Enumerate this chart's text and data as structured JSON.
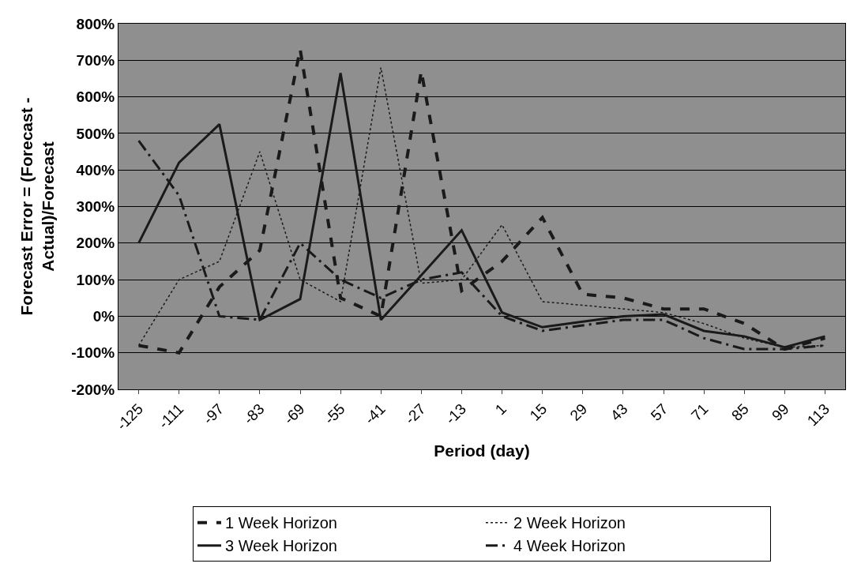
{
  "chart_data": {
    "type": "line",
    "xlabel": "Period (day)",
    "ylabel": "Forecast Error = (Forecast -\nActual)/Forecast",
    "categories": [
      "-125",
      "-111",
      "-97",
      "-83",
      "-69",
      "-55",
      "-41",
      "-27",
      "-13",
      "1",
      "15",
      "29",
      "43",
      "57",
      "71",
      "85",
      "99",
      "113"
    ],
    "ylim": [
      -200,
      800
    ],
    "yticks": [
      {
        "value": -200,
        "label": "-200%"
      },
      {
        "value": -100,
        "label": "-100%"
      },
      {
        "value": 0,
        "label": "0%"
      },
      {
        "value": 100,
        "label": "100%"
      },
      {
        "value": 200,
        "label": "200%"
      },
      {
        "value": 300,
        "label": "300%"
      },
      {
        "value": 400,
        "label": "400%"
      },
      {
        "value": 500,
        "label": "500%"
      },
      {
        "value": 600,
        "label": "600%"
      },
      {
        "value": 700,
        "label": "700%"
      },
      {
        "value": 800,
        "label": "800%"
      }
    ],
    "grid": "y",
    "legend": "bottom",
    "marker": "none",
    "series": [
      {
        "name": "1 Week Horizon",
        "color": "#1a1a1a",
        "line_style": "dashed",
        "values": [
          -80,
          -100,
          80,
          180,
          730,
          50,
          0,
          670,
          70,
          150,
          270,
          60,
          50,
          20,
          20,
          -20,
          -90,
          -60
        ]
      },
      {
        "name": "2 Week Horizon",
        "color": "#1a1a1a",
        "line_style": "dotted",
        "values": [
          -80,
          100,
          150,
          450,
          100,
          40,
          680,
          90,
          100,
          250,
          40,
          30,
          20,
          10,
          -20,
          -60,
          -85,
          -80
        ]
      },
      {
        "name": "3 Week Horizon",
        "color": "#1a1a1a",
        "line_style": "solid",
        "values": [
          200,
          420,
          525,
          -10,
          47,
          665,
          -10,
          112,
          235,
          10,
          -30,
          -15,
          0,
          5,
          -40,
          -55,
          -85,
          -55
        ]
      },
      {
        "name": "4 Week Horizon",
        "color": "#1a1a1a",
        "line_style": "dashdot",
        "values": [
          480,
          330,
          0,
          -10,
          200,
          100,
          50,
          100,
          120,
          0,
          -40,
          -25,
          -10,
          -10,
          -60,
          -90,
          -90,
          -80
        ]
      }
    ]
  }
}
